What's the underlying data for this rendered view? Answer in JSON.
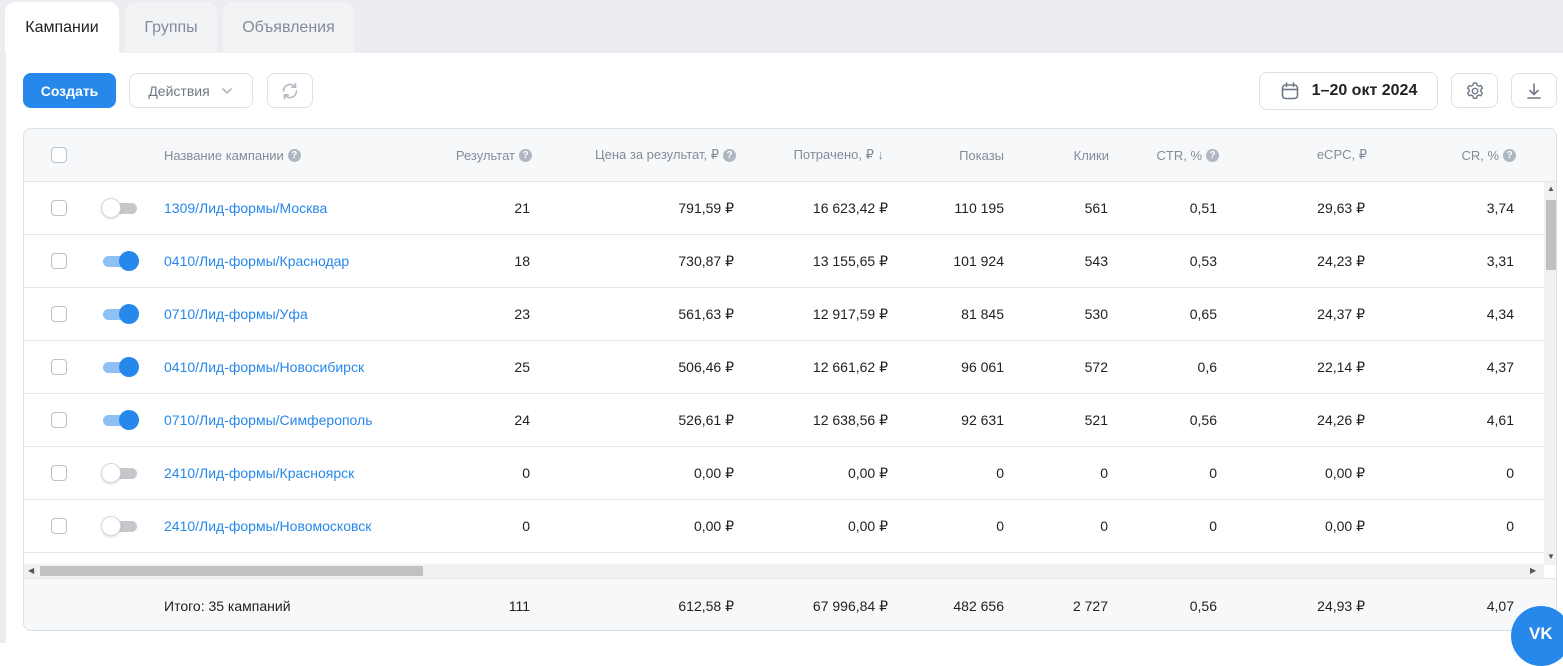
{
  "tabs": [
    {
      "label": "Кампании",
      "active": true
    },
    {
      "label": "Группы",
      "active": false
    },
    {
      "label": "Объявления",
      "active": false
    }
  ],
  "toolbar": {
    "create_label": "Создать",
    "actions_label": "Действия",
    "date_range": "1–20 окт 2024"
  },
  "table": {
    "headers": {
      "name": "Название кампании",
      "result": "Результат",
      "price": "Цена за результат, ₽",
      "spent": "Потрачено, ₽ ↓",
      "shows": "Показы",
      "clicks": "Клики",
      "ctr": "CTR, %",
      "ecpc": "eCPC, ₽",
      "cr": "CR, %"
    },
    "rows": [
      {
        "name": "1309/Лид-формы/Москва",
        "enabled": false,
        "result": "21",
        "price": "791,59 ₽",
        "spent": "16 623,42 ₽",
        "shows": "110 195",
        "clicks": "561",
        "ctr": "0,51",
        "ecpc": "29,63 ₽",
        "cr": "3,74"
      },
      {
        "name": "0410/Лид-формы/Краснодар",
        "enabled": true,
        "result": "18",
        "price": "730,87 ₽",
        "spent": "13 155,65 ₽",
        "shows": "101 924",
        "clicks": "543",
        "ctr": "0,53",
        "ecpc": "24,23 ₽",
        "cr": "3,31"
      },
      {
        "name": "0710/Лид-формы/Уфа",
        "enabled": true,
        "result": "23",
        "price": "561,63 ₽",
        "spent": "12 917,59 ₽",
        "shows": "81 845",
        "clicks": "530",
        "ctr": "0,65",
        "ecpc": "24,37 ₽",
        "cr": "4,34"
      },
      {
        "name": "0410/Лид-формы/Новосибирск",
        "enabled": true,
        "result": "25",
        "price": "506,46 ₽",
        "spent": "12 661,62 ₽",
        "shows": "96 061",
        "clicks": "572",
        "ctr": "0,6",
        "ecpc": "22,14 ₽",
        "cr": "4,37"
      },
      {
        "name": "0710/Лид-формы/Симферополь",
        "enabled": true,
        "result": "24",
        "price": "526,61 ₽",
        "spent": "12 638,56 ₽",
        "shows": "92 631",
        "clicks": "521",
        "ctr": "0,56",
        "ecpc": "24,26 ₽",
        "cr": "4,61"
      },
      {
        "name": "2410/Лид-формы/Красноярск",
        "enabled": false,
        "result": "0",
        "price": "0,00 ₽",
        "spent": "0,00 ₽",
        "shows": "0",
        "clicks": "0",
        "ctr": "0",
        "ecpc": "0,00 ₽",
        "cr": "0"
      },
      {
        "name": "2410/Лид-формы/Новомосковск",
        "enabled": false,
        "result": "0",
        "price": "0,00 ₽",
        "spent": "0,00 ₽",
        "shows": "0",
        "clicks": "0",
        "ctr": "0",
        "ecpc": "0,00 ₽",
        "cr": "0"
      }
    ],
    "totals": {
      "label": "Итого: 35 кампаний",
      "result": "111",
      "price": "612,58 ₽",
      "spent": "67 996,84 ₽",
      "shows": "482 656",
      "clicks": "2 727",
      "ctr": "0,56",
      "ecpc": "24,93 ₽",
      "cr": "4,07"
    }
  },
  "icons": {
    "help": "question-circle-icon",
    "calendar": "calendar-icon",
    "settings": "gear-icon",
    "download": "download-icon",
    "refresh": "refresh-icon",
    "vk_logo": "vk-logo-icon"
  },
  "vk_label": "VK",
  "colors": {
    "accent": "#2688eb",
    "link": "#2688eb",
    "tab_bg": "#ebedf0",
    "header_bg": "#f7f8fa"
  }
}
